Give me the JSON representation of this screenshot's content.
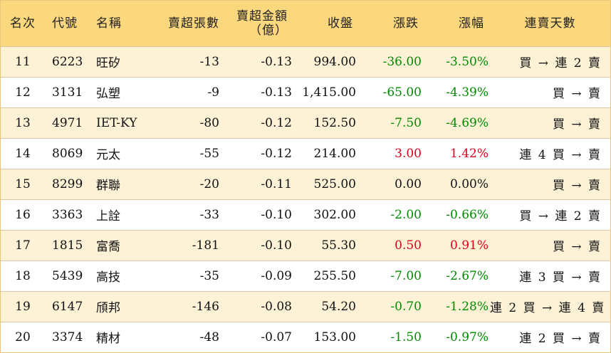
{
  "headers": {
    "rank": "名次",
    "code": "代號",
    "name": "名稱",
    "net_sell_lots": "賣超張數",
    "net_sell_amount_line1": "賣超金額",
    "net_sell_amount_line2": "（億）",
    "close": "收盤",
    "change": "漲跌",
    "pct_change": "漲幅",
    "streak": "連賣天數"
  },
  "rows": [
    {
      "rank": "11",
      "code": "6223",
      "name": "旺矽",
      "lots": "-13",
      "amount": "-0.13",
      "close": "994.00",
      "change": "-36.00",
      "pct": "-3.50%",
      "dir": "down",
      "streak": "買 → 連 2 賣"
    },
    {
      "rank": "12",
      "code": "3131",
      "name": "弘塑",
      "lots": "-9",
      "amount": "-0.13",
      "close": "1,415.00",
      "change": "-65.00",
      "pct": "-4.39%",
      "dir": "down",
      "streak": "買 → 賣"
    },
    {
      "rank": "13",
      "code": "4971",
      "name": "IET-KY",
      "lots": "-80",
      "amount": "-0.12",
      "close": "152.50",
      "change": "-7.50",
      "pct": "-4.69%",
      "dir": "down",
      "streak": "買 → 賣"
    },
    {
      "rank": "14",
      "code": "8069",
      "name": "元太",
      "lots": "-55",
      "amount": "-0.12",
      "close": "214.00",
      "change": "3.00",
      "pct": "1.42%",
      "dir": "up",
      "streak": "連 4 買 → 賣"
    },
    {
      "rank": "15",
      "code": "8299",
      "name": "群聯",
      "lots": "-20",
      "amount": "-0.11",
      "close": "525.00",
      "change": "0.00",
      "pct": "0.00%",
      "dir": "flat",
      "streak": "買 → 賣"
    },
    {
      "rank": "16",
      "code": "3363",
      "name": "上詮",
      "lots": "-33",
      "amount": "-0.10",
      "close": "302.00",
      "change": "-2.00",
      "pct": "-0.66%",
      "dir": "down",
      "streak": "買 → 連 2 賣"
    },
    {
      "rank": "17",
      "code": "1815",
      "name": "富喬",
      "lots": "-181",
      "amount": "-0.10",
      "close": "55.30",
      "change": "0.50",
      "pct": "0.91%",
      "dir": "up",
      "streak": "買 → 賣"
    },
    {
      "rank": "18",
      "code": "5439",
      "name": "高技",
      "lots": "-35",
      "amount": "-0.09",
      "close": "255.50",
      "change": "-7.00",
      "pct": "-2.67%",
      "dir": "down",
      "streak": "連 3 買 → 賣"
    },
    {
      "rank": "19",
      "code": "6147",
      "name": "頎邦",
      "lots": "-146",
      "amount": "-0.08",
      "close": "54.20",
      "change": "-0.70",
      "pct": "-1.28%",
      "dir": "down",
      "streak": "連 2 買 → 連 4 賣"
    },
    {
      "rank": "20",
      "code": "3374",
      "name": "精材",
      "lots": "-48",
      "amount": "-0.07",
      "close": "153.00",
      "change": "-1.50",
      "pct": "-0.97%",
      "dir": "down",
      "streak": "連 2 買 → 賣"
    }
  ],
  "colors": {
    "header_bg": "#fbd77e",
    "odd_row_bg": "#fdf2d6",
    "up": "#e0001b",
    "down": "#008a00"
  }
}
